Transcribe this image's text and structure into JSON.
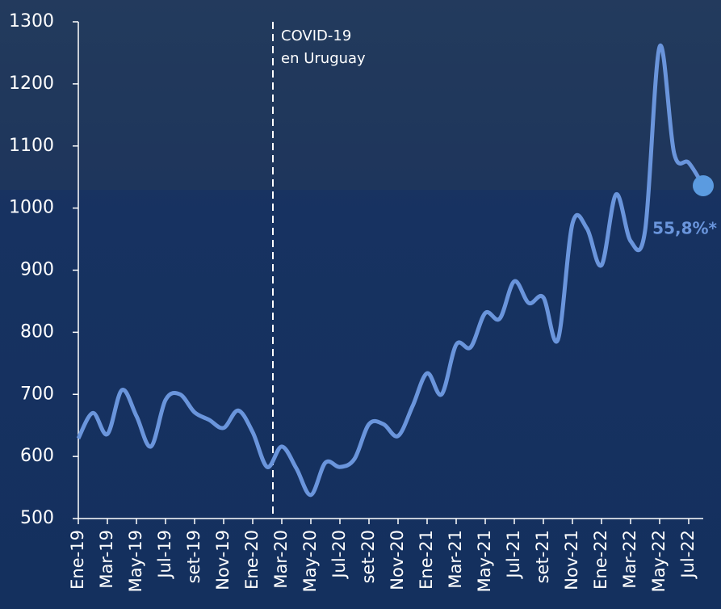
{
  "chart_data": {
    "type": "line",
    "categories": [
      "Ene-19",
      null,
      "Mar-19",
      null,
      "May-19",
      null,
      "Jul-19",
      null,
      "set-19",
      null,
      "Nov-19",
      null,
      "Ene-20",
      null,
      "Mar-20",
      null,
      "May-20",
      null,
      "Jul-20",
      null,
      "set-20",
      null,
      "Nov-20",
      null,
      "Ene-21",
      null,
      "Mar-21",
      null,
      "May-21",
      null,
      "Jul-21",
      null,
      "set-21",
      null,
      "Nov-21",
      null,
      "Ene-22",
      null,
      "Mar-22",
      null,
      "May-22",
      null,
      "Jul-22",
      null
    ],
    "series": [
      {
        "color": "#6a95dc",
        "values": [
          629,
          670,
          636,
          707,
          665,
          616,
          691,
          700,
          671,
          659,
          646,
          674,
          639,
          583,
          616,
          581,
          538,
          590,
          583,
          596,
          652,
          652,
          633,
          681,
          734,
          700,
          780,
          776,
          831,
          822,
          882,
          847,
          856,
          788,
          975,
          967,
          908,
          1022,
          947,
          964,
          1260,
          1088,
          1073,
          1036
        ]
      }
    ],
    "ylim": [
      500,
      1300
    ],
    "yticks": [
      500,
      600,
      700,
      800,
      900,
      1000,
      1100,
      1200,
      1300
    ],
    "event_line": {
      "category": "Mar-20",
      "label": [
        "COVID-19",
        "en Uruguay"
      ]
    },
    "end_label": "55,8%*"
  }
}
